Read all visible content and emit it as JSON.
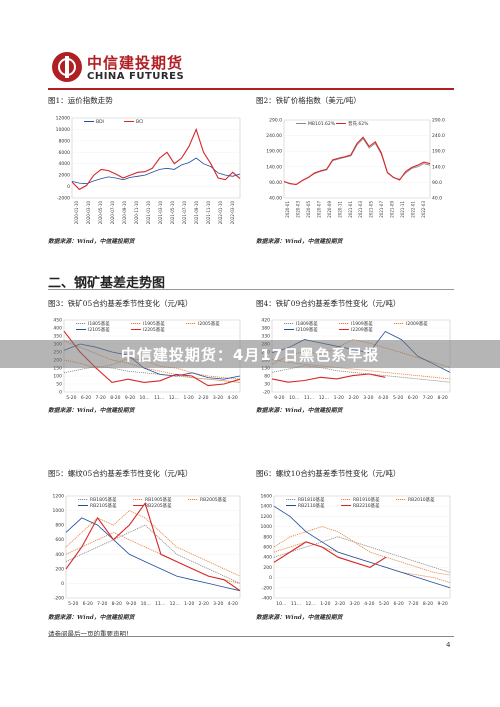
{
  "header": {
    "logo_cn": "中信建投期货",
    "logo_en": "CHINA FUTURES"
  },
  "section2_title": "二、钢矿基差走势图",
  "banner_text": "中信建投期货：4月17日黑色系早报",
  "footer": {
    "disclaimer": "请参阅最后一页的重要声明！",
    "page_number": "4"
  },
  "colors": {
    "brand_red": "#b01f24",
    "series_red": "#d62728",
    "series_blue": "#1f4e9e",
    "series_orange": "#e8803a",
    "series_gray": "#8a8a8a"
  },
  "charts": [
    {
      "title": "图1：运价指数走势",
      "source": "数据来源：Wind，中信建投期货",
      "chart_data": {
        "type": "line",
        "y_ticks": [
          "12000",
          "10000",
          "8000",
          "6000",
          "4000",
          "2000",
          "0",
          "-2000"
        ],
        "ylim": [
          -2000,
          12000
        ],
        "x_ticks": [
          "2020-01-10",
          "2020-03-10",
          "2020-05-10",
          "2020-07-10",
          "2020-09-10",
          "2020-11-10",
          "2021-01-10",
          "2021-03-10",
          "2021-05-10",
          "2021-07-10",
          "2021-09-10",
          "2021-11-10",
          "2022-01-10",
          "2022-03-10"
        ],
        "legend": [
          "BDI",
          "BCI"
        ],
        "series": [
          {
            "name": "BDI",
            "color": "#1f4e9e",
            "values": [
              900,
              600,
              500,
              1000,
              1400,
              1700,
              1500,
              1200,
              1600,
              1800,
              2000,
              2500,
              3000,
              3200,
              3000,
              3800,
              4200,
              5000,
              4000,
              3500,
              2400,
              2000,
              1800,
              2200
            ]
          },
          {
            "name": "BCI",
            "color": "#d62728",
            "values": [
              800,
              -500,
              200,
              2000,
              3000,
              2800,
              2200,
              1500,
              2000,
              2500,
              2600,
              3200,
              5000,
              6000,
              4000,
              5000,
              7000,
              10000,
              6000,
              4000,
              1500,
              1200,
              2500,
              1400
            ]
          }
        ]
      }
    },
    {
      "title": "图2：铁矿价格指数（美元/吨）",
      "source": "数据来源：Wind，中信建投期货",
      "chart_data": {
        "type": "line",
        "y_ticks_left": [
          "290.0",
          "240.00",
          "190.00",
          "140.00",
          "90.00",
          "40.00"
        ],
        "y_ticks_right": [
          "290.0",
          "240.0",
          "190.0",
          "140.0",
          "90.0",
          "40.0"
        ],
        "ylim": [
          40,
          290
        ],
        "x_ticks": [
          "2020-01",
          "2020-03",
          "2020-05",
          "2020-07",
          "2020-09",
          "2020-11",
          "2021-01",
          "2021-03",
          "2021-05",
          "2021-07",
          "2021-09",
          "2021-11",
          "2022-01",
          "2022-03"
        ],
        "legend": [
          "MB101.62%",
          "普氏.62%"
        ],
        "series": [
          {
            "name": "MB101.62%",
            "color": "#8a8a8a",
            "values": [
              92,
              85,
              84,
              95,
              105,
              118,
              125,
              130,
              160,
              165,
              170,
              175,
              210,
              230,
              200,
              215,
              180,
              120,
              105,
              100,
              120,
              135,
              140,
              150,
              145
            ]
          },
          {
            "name": "普氏.62%",
            "color": "#d62728",
            "values": [
              93,
              86,
              83,
              96,
              106,
              120,
              127,
              132,
              162,
              168,
              172,
              178,
              215,
              235,
              205,
              220,
              185,
              122,
              106,
              98,
              125,
              138,
              145,
              155,
              150
            ]
          }
        ]
      }
    },
    {
      "title": "图3：铁矿05合约基差季节性变化（元/吨）",
      "source": "数据来源：Wind，中信建投期货",
      "chart_data": {
        "type": "line",
        "y_ticks": [
          "450",
          "400",
          "350",
          "300",
          "250",
          "200",
          "150",
          "100",
          "50",
          "0"
        ],
        "ylim": [
          0,
          450
        ],
        "x_ticks": [
          "5-20",
          "6-20",
          "7-20",
          "8-20",
          "9-20",
          "10…",
          "11…",
          "12…",
          "1-20",
          "2-20",
          "3-20",
          "4-20"
        ],
        "legend": [
          "I1805基差",
          "I1905基差",
          "I2005基差",
          "I2105基差",
          "I2205基差"
        ],
        "series": [
          {
            "name": "I1805基差",
            "color": "#8a8a8a",
            "values": [
              120,
              140,
              160,
              150,
              130,
              120,
              110,
              100,
              90,
              80,
              70,
              60
            ]
          },
          {
            "name": "I1905基差",
            "color": "#e8803a",
            "values": [
              200,
              180,
              150,
              170,
              210,
              200,
              160,
              150,
              120,
              100,
              90,
              80
            ]
          },
          {
            "name": "I2005基差",
            "color": "#e8803a",
            "values": [
              320,
              280,
              240,
              200,
              180,
              150,
              130,
              110,
              90,
              80,
              70,
              60
            ]
          },
          {
            "name": "I2105基差",
            "color": "#1f4e9e",
            "values": [
              260,
              300,
              280,
              250,
              230,
              150,
              110,
              100,
              120,
              90,
              80,
              100
            ]
          },
          {
            "name": "I2205基差",
            "color": "#d62728",
            "values": [
              380,
              250,
              150,
              60,
              80,
              60,
              70,
              110,
              100,
              40,
              50,
              80
            ]
          }
        ]
      }
    },
    {
      "title": "图4：铁矿09合约基差季节性变化（元/吨）",
      "source": "数据来源：Wind，中信建投期货",
      "chart_data": {
        "type": "line",
        "y_ticks": [
          "420",
          "380",
          "330",
          "280",
          "230",
          "180",
          "130",
          "80",
          "30",
          "-20"
        ],
        "ylim": [
          -20,
          420
        ],
        "x_ticks": [
          "9-20",
          "10…",
          "11…",
          "12…",
          "1-20",
          "2-20",
          "3-20",
          "4-20",
          "5-20",
          "6-20",
          "7-20",
          "8-20"
        ],
        "legend": [
          "I1809基差",
          "I1909基差",
          "I2009基差",
          "I2109基差",
          "I2209基差"
        ],
        "series": [
          {
            "name": "I1809基差",
            "color": "#8a8a8a",
            "values": [
              100,
              120,
              140,
              130,
              110,
              100,
              90,
              80,
              70,
              60,
              50,
              40
            ]
          },
          {
            "name": "I1909基差",
            "color": "#e8803a",
            "values": [
              150,
              200,
              230,
              210,
              250,
              300,
              280,
              250,
              220,
              190,
              160,
              130
            ]
          },
          {
            "name": "I2009基差",
            "color": "#e8803a",
            "values": [
              180,
              160,
              150,
              140,
              130,
              120,
              110,
              100,
              90,
              80,
              70,
              60
            ]
          },
          {
            "name": "I2109基差",
            "color": "#1f4e9e",
            "values": [
              220,
              250,
              300,
              280,
              260,
              240,
              220,
              350,
              300,
              200,
              150,
              100
            ]
          },
          {
            "name": "I2209基差",
            "color": "#d62728",
            "values": [
              60,
              40,
              50,
              70,
              60,
              80,
              90,
              70
            ]
          }
        ]
      }
    },
    {
      "title": "图5：螺纹05合约基差季节性变化（元/吨）",
      "source": "数据来源：Wind，中信建投期货",
      "chart_data": {
        "type": "line",
        "y_ticks": [
          "1200",
          "1000",
          "800",
          "600",
          "400",
          "200",
          "0",
          "-200"
        ],
        "ylim": [
          -200,
          1200
        ],
        "x_ticks": [
          "5-20",
          "6-20",
          "7-20",
          "8-20",
          "9-20",
          "10…",
          "11…",
          "12…",
          "1-20",
          "2-20",
          "3-20",
          "4-20"
        ],
        "legend": [
          "RB1805基差",
          "RB1905基差",
          "RB2005基差",
          "RB2105基差",
          "RB2205基差"
        ],
        "series": [
          {
            "name": "RB1805基差",
            "color": "#8a8a8a",
            "values": [
              300,
              400,
              500,
              600,
              700,
              800,
              600,
              400,
              300,
              200,
              100,
              0
            ]
          },
          {
            "name": "RB1905基差",
            "color": "#e8803a",
            "values": [
              500,
              700,
              900,
              800,
              1000,
              900,
              700,
              500,
              400,
              300,
              200,
              100
            ]
          },
          {
            "name": "RB2005基差",
            "color": "#e8803a",
            "values": [
              400,
              500,
              600,
              700,
              600,
              500,
              400,
              300,
              200,
              100,
              50,
              0
            ]
          },
          {
            "name": "RB2105基差",
            "color": "#1f4e9e",
            "values": [
              700,
              900,
              800,
              600,
              400,
              300,
              200,
              100,
              50,
              0,
              -50,
              -100
            ]
          },
          {
            "name": "RB2205基差",
            "color": "#d62728",
            "values": [
              200,
              500,
              900,
              600,
              800,
              1100,
              400,
              300,
              200,
              100,
              50,
              -100
            ]
          }
        ]
      }
    },
    {
      "title": "图6：螺纹10合约基差季节性变化（元/吨）",
      "source": "数据来源：Wind，中信建投期货",
      "chart_data": {
        "type": "line",
        "y_ticks": [
          "1600",
          "1400",
          "1200",
          "1000",
          "800",
          "600",
          "400",
          "200",
          "0",
          "-200",
          "-400"
        ],
        "ylim": [
          -400,
          1600
        ],
        "x_ticks": [
          "10…",
          "11…",
          "12…",
          "1-20",
          "2-20",
          "3-20",
          "4-20",
          "5-20",
          "6-20",
          "7-20",
          "8-20",
          "9-20"
        ],
        "legend": [
          "RB1810基差",
          "RB1910基差",
          "RB2010基差",
          "RB2110基差",
          "RB2210基差"
        ],
        "series": [
          {
            "name": "RB1810基差",
            "color": "#8a8a8a",
            "values": [
              400,
              500,
              600,
              700,
              800,
              700,
              600,
              500,
              400,
              300,
              200,
              100
            ]
          },
          {
            "name": "RB1910基差",
            "color": "#e8803a",
            "values": [
              600,
              800,
              900,
              1000,
              900,
              700,
              500,
              400,
              300,
              200,
              100,
              50
            ]
          },
          {
            "name": "RB2010基差",
            "color": "#e8803a",
            "values": [
              500,
              600,
              700,
              600,
              500,
              400,
              300,
              200,
              100,
              50,
              0,
              -100
            ]
          },
          {
            "name": "RB2110基差",
            "color": "#1f4e9e",
            "values": [
              1400,
              1200,
              900,
              700,
              500,
              400,
              300,
              200,
              100,
              0,
              -100,
              -200
            ]
          },
          {
            "name": "RB2210基差",
            "color": "#d62728",
            "values": [
              300,
              500,
              700,
              600,
              400,
              300,
              200,
              400
            ]
          }
        ]
      }
    }
  ]
}
